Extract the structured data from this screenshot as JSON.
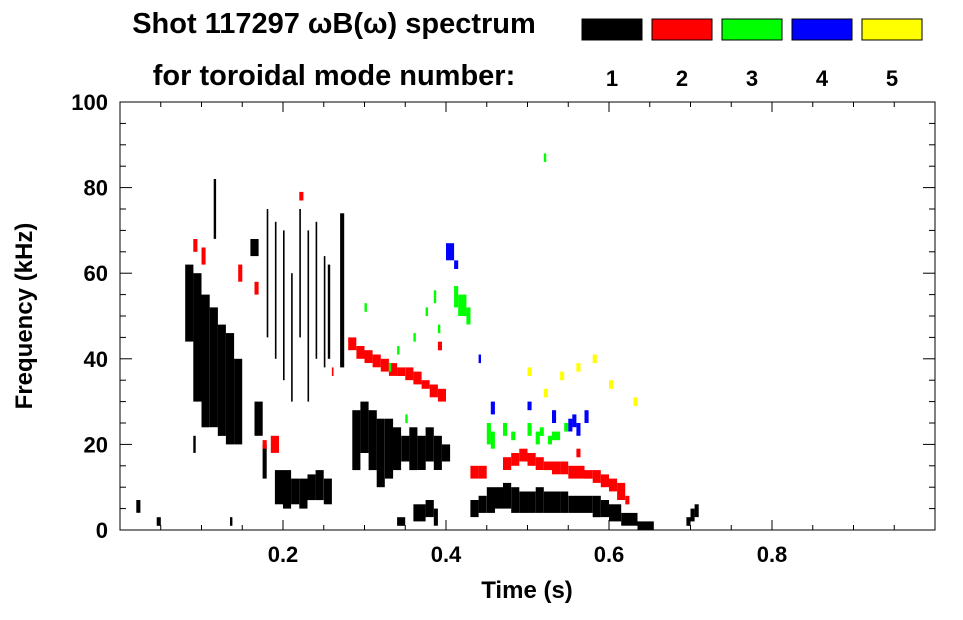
{
  "chart_data": {
    "type": "scatter",
    "title_line1": "Shot 117297 ωB(ω) spectrum",
    "title_line2": "for toroidal mode number:",
    "xlabel": "Time (s)",
    "ylabel": "Frequency (kHz)",
    "xlim": [
      0.0,
      1.0
    ],
    "ylim": [
      0,
      100
    ],
    "x_ticks": [
      0.2,
      0.4,
      0.6,
      0.8
    ],
    "x_tick_labels": [
      "0.2",
      "0.4",
      "0.6",
      "0.8"
    ],
    "y_ticks": [
      0,
      20,
      40,
      60,
      80,
      100
    ],
    "y_tick_labels": [
      "0",
      "20",
      "40",
      "60",
      "80",
      "100"
    ],
    "grid": false,
    "legend_position": "top-right",
    "series": [
      {
        "name": "1",
        "color": "#000000",
        "bands": [
          [
            0.02,
            0.025,
            4,
            7
          ],
          [
            0.045,
            0.05,
            1,
            3
          ],
          [
            0.08,
            0.09,
            44,
            62
          ],
          [
            0.09,
            0.1,
            30,
            60
          ],
          [
            0.1,
            0.11,
            24,
            55
          ],
          [
            0.11,
            0.12,
            24,
            52
          ],
          [
            0.12,
            0.13,
            22,
            48
          ],
          [
            0.13,
            0.14,
            20,
            46
          ],
          [
            0.14,
            0.15,
            20,
            40
          ],
          [
            0.115,
            0.118,
            68,
            82
          ],
          [
            0.09,
            0.093,
            18,
            22
          ],
          [
            0.135,
            0.138,
            1,
            3
          ],
          [
            0.16,
            0.17,
            64,
            68
          ],
          [
            0.165,
            0.175,
            22,
            30
          ],
          [
            0.175,
            0.18,
            12,
            20
          ],
          [
            0.19,
            0.2,
            6,
            14
          ],
          [
            0.2,
            0.21,
            5,
            14
          ],
          [
            0.21,
            0.22,
            6,
            12
          ],
          [
            0.22,
            0.23,
            5,
            12
          ],
          [
            0.23,
            0.24,
            7,
            13
          ],
          [
            0.24,
            0.25,
            7,
            14
          ],
          [
            0.25,
            0.26,
            6,
            12
          ],
          [
            0.18,
            0.182,
            45,
            75
          ],
          [
            0.19,
            0.192,
            40,
            72
          ],
          [
            0.2,
            0.202,
            35,
            70
          ],
          [
            0.21,
            0.212,
            30,
            60
          ],
          [
            0.22,
            0.222,
            45,
            75
          ],
          [
            0.23,
            0.232,
            30,
            70
          ],
          [
            0.24,
            0.242,
            40,
            72
          ],
          [
            0.25,
            0.252,
            38,
            64
          ],
          [
            0.255,
            0.258,
            40,
            62
          ],
          [
            0.27,
            0.275,
            38,
            74
          ],
          [
            0.285,
            0.295,
            14,
            28
          ],
          [
            0.295,
            0.305,
            18,
            30
          ],
          [
            0.305,
            0.315,
            14,
            28
          ],
          [
            0.315,
            0.325,
            10,
            26
          ],
          [
            0.325,
            0.335,
            12,
            26
          ],
          [
            0.335,
            0.345,
            14,
            24
          ],
          [
            0.345,
            0.355,
            16,
            22
          ],
          [
            0.355,
            0.365,
            14,
            24
          ],
          [
            0.365,
            0.375,
            14,
            22
          ],
          [
            0.375,
            0.385,
            16,
            24
          ],
          [
            0.385,
            0.395,
            14,
            22
          ],
          [
            0.395,
            0.405,
            16,
            20
          ],
          [
            0.34,
            0.35,
            1,
            3
          ],
          [
            0.36,
            0.375,
            2,
            6
          ],
          [
            0.375,
            0.385,
            3,
            7
          ],
          [
            0.385,
            0.39,
            1,
            5
          ],
          [
            0.43,
            0.44,
            3,
            7
          ],
          [
            0.44,
            0.45,
            4,
            8
          ],
          [
            0.45,
            0.46,
            4,
            10
          ],
          [
            0.46,
            0.47,
            5,
            10
          ],
          [
            0.47,
            0.48,
            5,
            11
          ],
          [
            0.48,
            0.49,
            4,
            10
          ],
          [
            0.49,
            0.5,
            4,
            9
          ],
          [
            0.5,
            0.51,
            4,
            9
          ],
          [
            0.51,
            0.52,
            4,
            10
          ],
          [
            0.52,
            0.53,
            4,
            9
          ],
          [
            0.53,
            0.54,
            4,
            9
          ],
          [
            0.54,
            0.55,
            4,
            9
          ],
          [
            0.55,
            0.56,
            4,
            8
          ],
          [
            0.56,
            0.57,
            4,
            8
          ],
          [
            0.57,
            0.58,
            4,
            8
          ],
          [
            0.58,
            0.59,
            3,
            8
          ],
          [
            0.59,
            0.6,
            3,
            7
          ],
          [
            0.6,
            0.615,
            2,
            6
          ],
          [
            0.615,
            0.635,
            1,
            4
          ],
          [
            0.635,
            0.655,
            0,
            2
          ],
          [
            0.695,
            0.7,
            1,
            3
          ],
          [
            0.7,
            0.705,
            2,
            5
          ],
          [
            0.705,
            0.71,
            3,
            6
          ]
        ]
      },
      {
        "name": "2",
        "color": "#ff0000",
        "bands": [
          [
            0.09,
            0.095,
            65,
            68
          ],
          [
            0.1,
            0.105,
            62,
            66
          ],
          [
            0.145,
            0.15,
            58,
            62
          ],
          [
            0.165,
            0.17,
            55,
            58
          ],
          [
            0.175,
            0.18,
            19,
            21
          ],
          [
            0.185,
            0.195,
            18,
            22
          ],
          [
            0.22,
            0.225,
            77,
            79
          ],
          [
            0.28,
            0.29,
            42,
            45
          ],
          [
            0.29,
            0.3,
            40,
            43
          ],
          [
            0.3,
            0.31,
            39,
            42
          ],
          [
            0.31,
            0.32,
            38,
            41
          ],
          [
            0.32,
            0.33,
            37,
            40
          ],
          [
            0.33,
            0.34,
            36,
            39
          ],
          [
            0.34,
            0.35,
            36,
            38
          ],
          [
            0.35,
            0.36,
            35,
            38
          ],
          [
            0.36,
            0.37,
            34,
            37
          ],
          [
            0.37,
            0.38,
            33,
            35
          ],
          [
            0.38,
            0.39,
            31,
            34
          ],
          [
            0.39,
            0.4,
            30,
            33
          ],
          [
            0.39,
            0.395,
            42,
            44
          ],
          [
            0.26,
            0.262,
            36,
            38
          ],
          [
            0.43,
            0.44,
            12,
            15
          ],
          [
            0.44,
            0.45,
            12,
            15
          ],
          [
            0.47,
            0.48,
            14,
            17
          ],
          [
            0.48,
            0.49,
            15,
            18
          ],
          [
            0.49,
            0.5,
            16,
            19
          ],
          [
            0.5,
            0.51,
            15,
            18
          ],
          [
            0.51,
            0.52,
            14,
            17
          ],
          [
            0.52,
            0.53,
            14,
            16
          ],
          [
            0.53,
            0.54,
            13,
            16
          ],
          [
            0.54,
            0.55,
            13,
            16
          ],
          [
            0.55,
            0.56,
            12,
            15
          ],
          [
            0.56,
            0.57,
            12,
            15
          ],
          [
            0.57,
            0.58,
            12,
            14
          ],
          [
            0.58,
            0.59,
            11,
            14
          ],
          [
            0.59,
            0.6,
            10,
            13
          ],
          [
            0.6,
            0.61,
            9,
            12
          ],
          [
            0.61,
            0.62,
            7,
            11
          ],
          [
            0.62,
            0.625,
            6,
            8
          ],
          [
            0.56,
            0.565,
            17,
            19
          ]
        ]
      },
      {
        "name": "3",
        "color": "#00ff00",
        "bands": [
          [
            0.3,
            0.303,
            51,
            53
          ],
          [
            0.34,
            0.343,
            41,
            43
          ],
          [
            0.36,
            0.363,
            44,
            46
          ],
          [
            0.375,
            0.378,
            50,
            52
          ],
          [
            0.385,
            0.388,
            53,
            56
          ],
          [
            0.39,
            0.393,
            46,
            48
          ],
          [
            0.41,
            0.415,
            52,
            57
          ],
          [
            0.415,
            0.425,
            50,
            55
          ],
          [
            0.425,
            0.43,
            48,
            52
          ],
          [
            0.33,
            0.333,
            37,
            39
          ],
          [
            0.35,
            0.353,
            25,
            27
          ],
          [
            0.45,
            0.455,
            20,
            25
          ],
          [
            0.455,
            0.46,
            19,
            23
          ],
          [
            0.47,
            0.475,
            22,
            25
          ],
          [
            0.48,
            0.485,
            21,
            23
          ],
          [
            0.5,
            0.505,
            22,
            25
          ],
          [
            0.51,
            0.515,
            20,
            23
          ],
          [
            0.515,
            0.52,
            22,
            24
          ],
          [
            0.525,
            0.53,
            20,
            22
          ],
          [
            0.53,
            0.54,
            21,
            23
          ],
          [
            0.545,
            0.55,
            23,
            25
          ],
          [
            0.52,
            0.523,
            86,
            88
          ]
        ]
      },
      {
        "name": "4",
        "color": "#0000ff",
        "bands": [
          [
            0.4,
            0.41,
            63,
            67
          ],
          [
            0.41,
            0.415,
            61,
            63
          ],
          [
            0.455,
            0.46,
            27,
            30
          ],
          [
            0.5,
            0.505,
            28,
            30
          ],
          [
            0.53,
            0.535,
            25,
            28
          ],
          [
            0.55,
            0.555,
            23,
            26
          ],
          [
            0.555,
            0.56,
            24,
            27
          ],
          [
            0.56,
            0.565,
            22,
            25
          ],
          [
            0.57,
            0.575,
            25,
            28
          ],
          [
            0.44,
            0.443,
            39,
            41
          ]
        ]
      },
      {
        "name": "5",
        "color": "#ffff00",
        "bands": [
          [
            0.5,
            0.505,
            36,
            38
          ],
          [
            0.52,
            0.525,
            31,
            33
          ],
          [
            0.54,
            0.545,
            35,
            37
          ],
          [
            0.56,
            0.565,
            37,
            39
          ],
          [
            0.58,
            0.585,
            39,
            41
          ],
          [
            0.6,
            0.605,
            33,
            35
          ],
          [
            0.63,
            0.635,
            29,
            31
          ]
        ]
      }
    ]
  }
}
